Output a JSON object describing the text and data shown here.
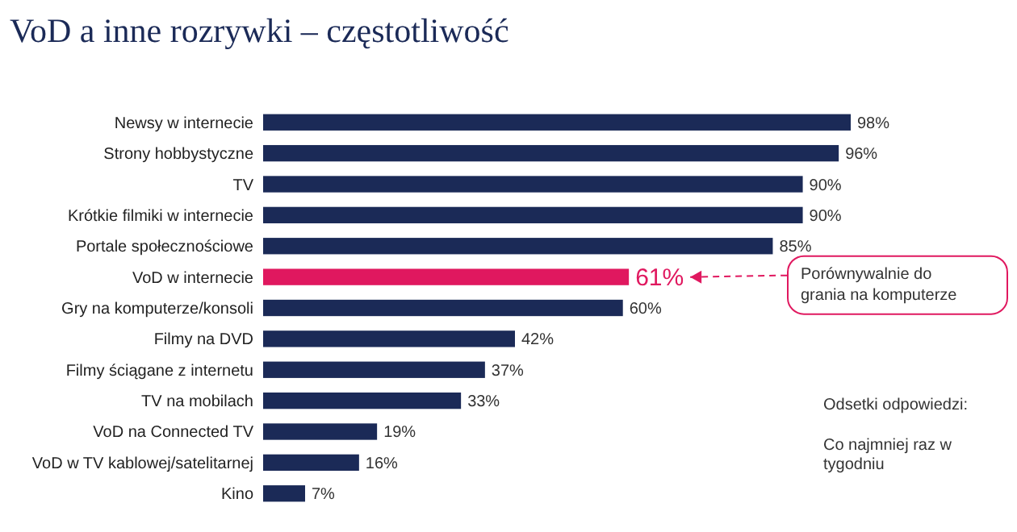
{
  "chart_data": {
    "type": "bar",
    "orientation": "horizontal",
    "title": "VoD a inne rozrywki – częstotliwość",
    "categories": [
      "Newsy w internecie",
      "Strony hobbystyczne",
      "TV",
      "Krótkie filmiki w internecie",
      "Portale społecznościowe",
      "VoD w internecie",
      "Gry na komputerze/konsoli",
      "Filmy na DVD",
      "Filmy ściągane z internetu",
      "TV na mobilach",
      "VoD na Connected TV",
      "VoD w TV kablowej/satelitarnej",
      "Kino"
    ],
    "values": [
      98,
      96,
      90,
      90,
      85,
      61,
      60,
      42,
      37,
      33,
      19,
      16,
      7
    ],
    "value_labels": [
      "98%",
      "96%",
      "90%",
      "90%",
      "85%",
      "61%",
      "60%",
      "42%",
      "37%",
      "33%",
      "19%",
      "16%",
      "7%"
    ],
    "colors": [
      "#1b2a57",
      "#1b2a57",
      "#1b2a57",
      "#1b2a57",
      "#1b2a57",
      "#e0185f",
      "#1b2a57",
      "#1b2a57",
      "#1b2a57",
      "#1b2a57",
      "#1b2a57",
      "#1b2a57",
      "#1b2a57"
    ],
    "annotations": [
      "Porównywalnie do grania na komputerze",
      "Odsetki odpowiedzi:",
      "Co najmniej raz w tygodniu"
    ]
  }
}
